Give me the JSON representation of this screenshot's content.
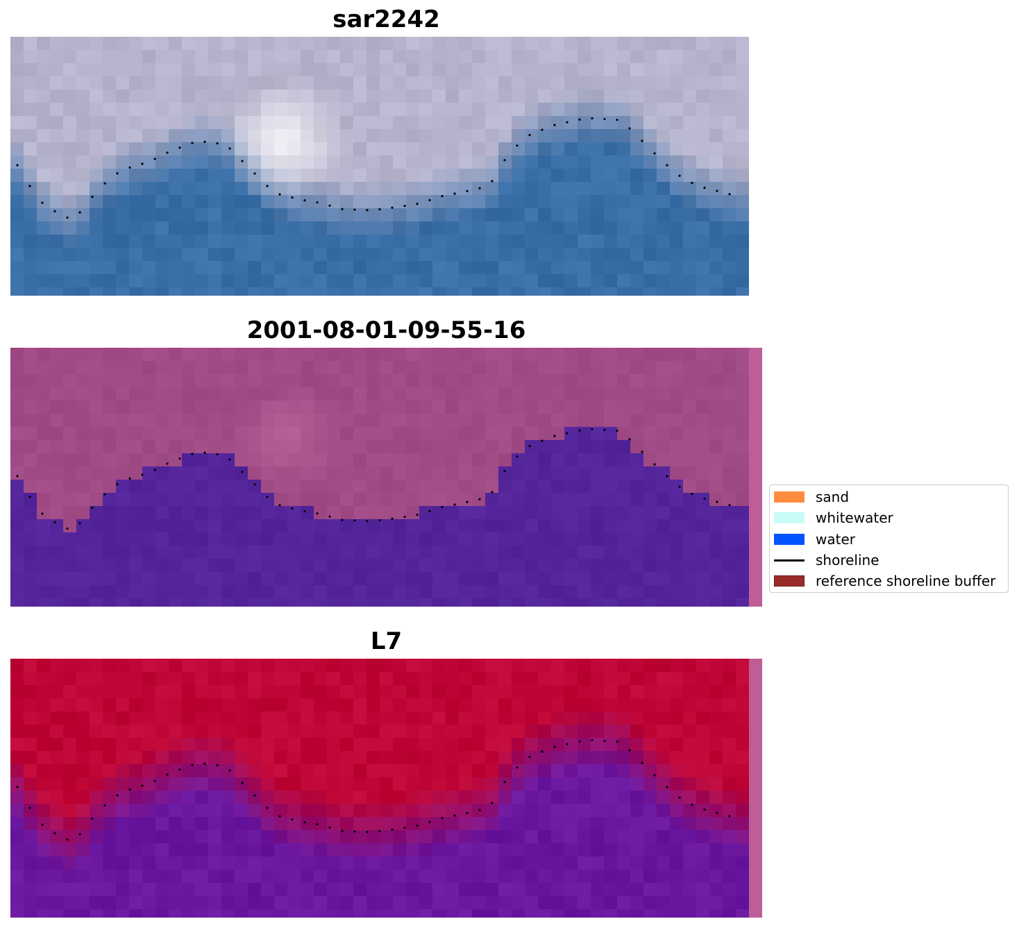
{
  "panels": [
    {
      "title": "sar2242"
    },
    {
      "title": "2001-08-01-09-55-16"
    },
    {
      "title": "L7"
    }
  ],
  "legend": {
    "items": [
      {
        "label": "sand",
        "color": "#ff8c3c",
        "kind": "patch"
      },
      {
        "label": "whitewater",
        "color": "#c8fcf8",
        "kind": "patch"
      },
      {
        "label": "water",
        "color": "#0055ff",
        "kind": "patch"
      },
      {
        "label": "shoreline",
        "color": "#000000",
        "kind": "line"
      },
      {
        "label": "reference shoreline buffer",
        "color": "#9a2a2a",
        "kind": "patch"
      }
    ]
  },
  "colors": {
    "rgb_sky": "#b6b4cc",
    "rgb_water": "#3a6ea6",
    "class_land": "#a04a86",
    "class_water": "#54259a",
    "index_land": "#be0535",
    "index_water": "#6a17a0",
    "buffer_strip": "#be5e97"
  }
}
